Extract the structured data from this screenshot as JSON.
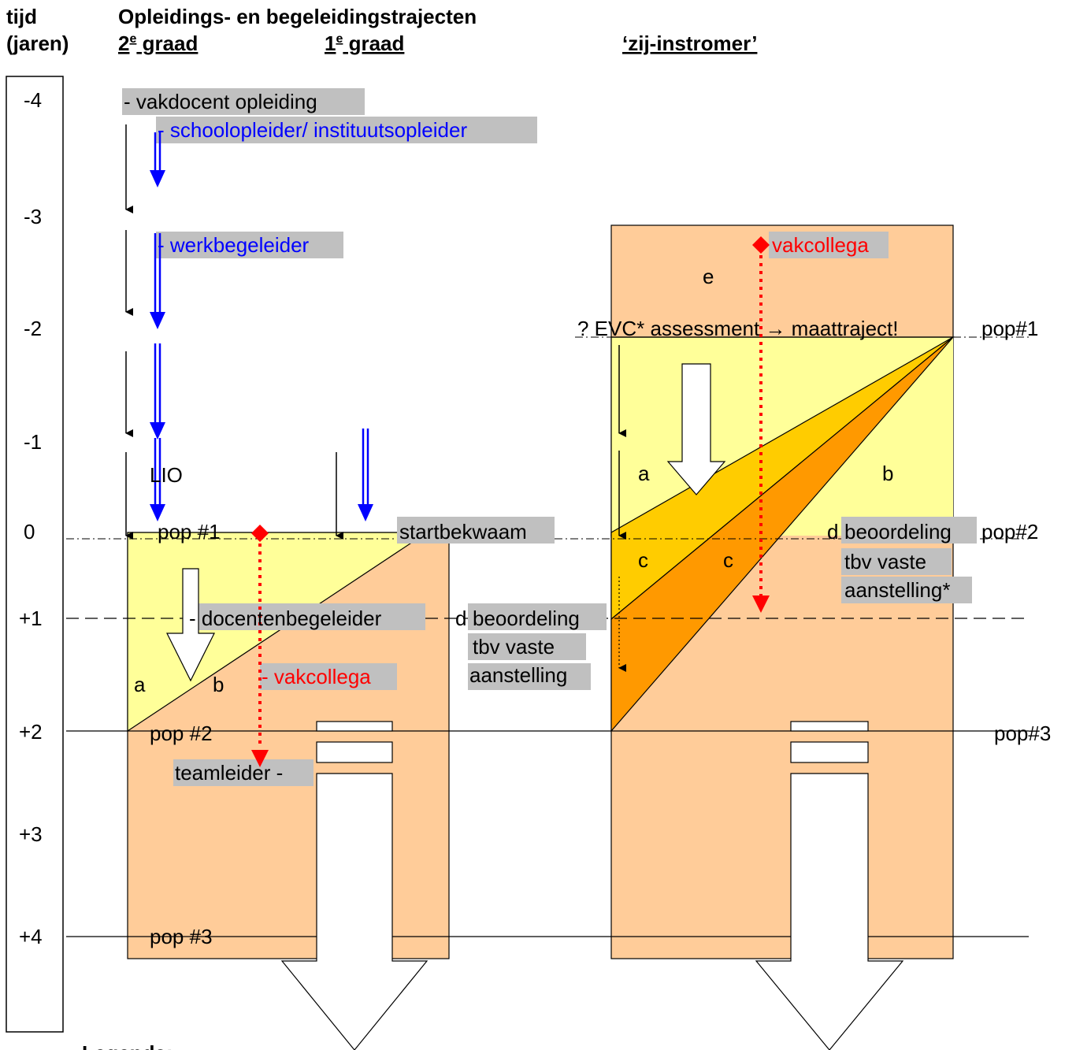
{
  "header": {
    "col_time_1": "tijd",
    "col_time_2": "(jaren)",
    "title": "Opleidings- en begeleidingstrajecten",
    "grade2_num": "2",
    "grade2_sup": "e",
    "grade2_word": " graad",
    "grade1_num": "1",
    "grade1_sup": "e",
    "grade1_word": " graad",
    "lateral": "‘zij-instromer’"
  },
  "timeline": [
    "-4",
    "-3",
    "-2",
    "-1",
    "0",
    "+1",
    "+2",
    "+3",
    "+4"
  ],
  "labels": {
    "vakdocent": "- vakdocent opleiding",
    "schoolopleider": "- schoolopleider/ instituutsopleider",
    "werkbegeleider": "- werkbegeleider",
    "lio": "LIO",
    "pop1_left": "pop #1",
    "startbekwaam": "startbekwaam",
    "docentenbegeleider": "- docentenbegeleider",
    "vakcollega_left": "- vakcollega",
    "pop2_left": "pop #2",
    "teamleider": "teamleider -",
    "pop3_left": "pop #3",
    "a_left": "a",
    "b_left": "b",
    "d_mid": "d",
    "beoordeling_mid_1": "beoordeling",
    "beoordeling_mid_2": "tbv vaste",
    "beoordeling_mid_3": "aanstelling",
    "vakcollega_right": "vakcollega",
    "e": "e",
    "evc": "? EVC* assessment → maattraject!",
    "pop1_right": "pop#1",
    "a_right": "a",
    "b_right": "b",
    "c_right_1": "c",
    "c_right_2": "c",
    "d_right": "d",
    "beoordeling_right_1": "beoordeling",
    "beoordeling_right_2": "tbv vaste",
    "beoordeling_right_3": "aanstelling*",
    "pop2_right": "pop#2",
    "pop3_right": "pop#3",
    "legenda": "Legenda:"
  },
  "colors": {
    "peach": "#FFCC99",
    "light_yellow": "#FFFF99",
    "gold": "#FFCC00",
    "orange": "#FF9900",
    "label_bg": "#C0C0C0",
    "blue": "#0000FF",
    "red": "#FF0000"
  }
}
